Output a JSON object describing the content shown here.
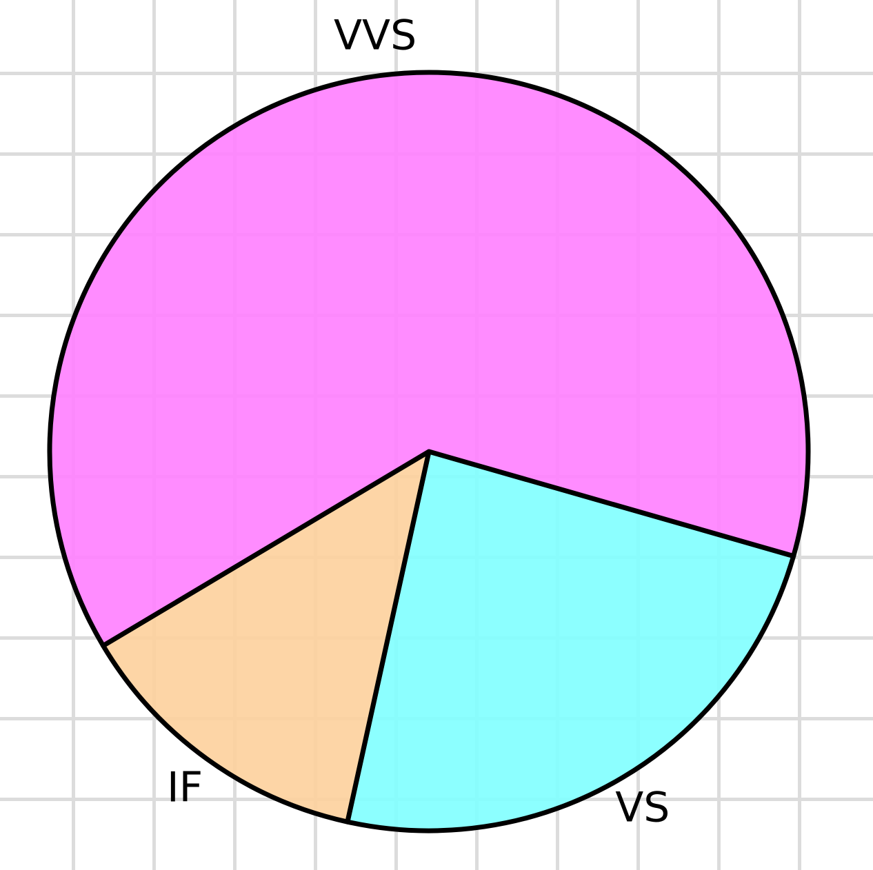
{
  "chart_data": {
    "type": "pie",
    "categories": [
      "VS",
      "IF",
      "VVS"
    ],
    "values": [
      24,
      13,
      63
    ],
    "colors": [
      "#80ffff",
      "#fdd09c",
      "#ff80ff"
    ]
  }
}
